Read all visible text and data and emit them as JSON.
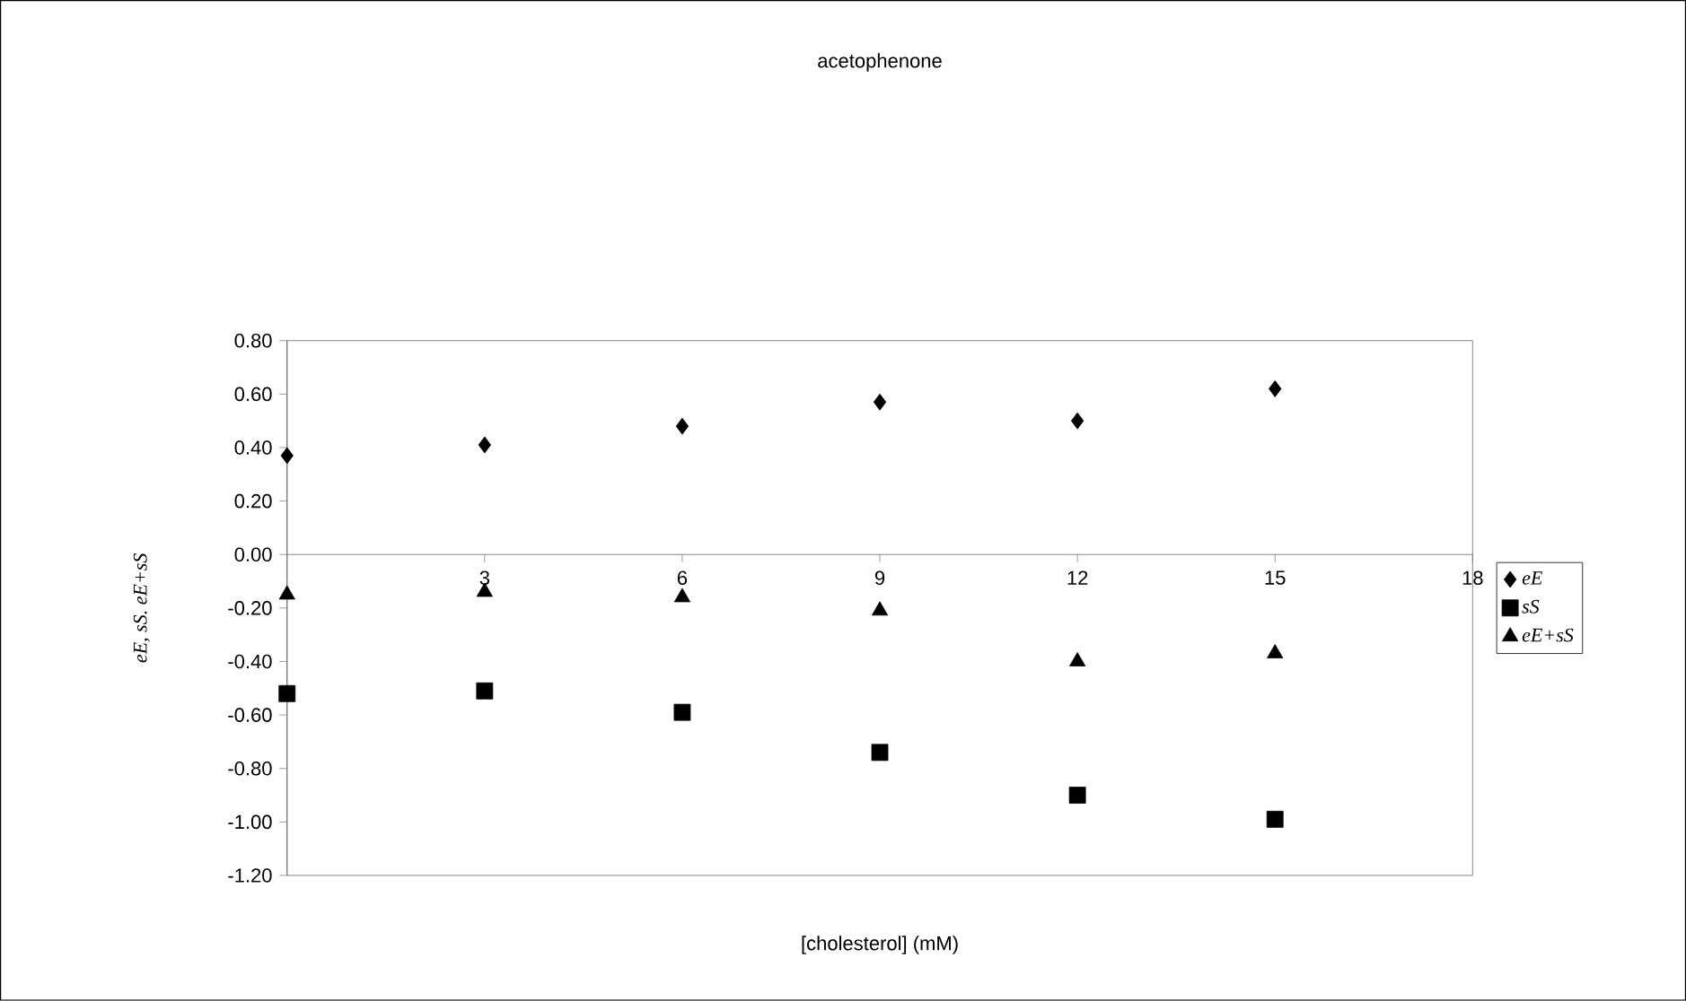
{
  "chart_data": {
    "type": "scatter",
    "title": "acetophenone",
    "xlabel": "[cholesterol] (mM)",
    "ylabel": "eE, sS. eE+sS",
    "x": [
      0,
      3,
      6,
      9,
      12,
      15
    ],
    "series": [
      {
        "name": "eE",
        "color": "#000000",
        "marker": "diamond",
        "values": [
          0.37,
          0.41,
          0.48,
          0.57,
          0.5,
          0.62
        ]
      },
      {
        "name": "sS",
        "color": "#000000",
        "marker": "square",
        "values": [
          -0.52,
          -0.51,
          -0.59,
          -0.74,
          -0.9,
          -0.99
        ]
      },
      {
        "name": "eE+sS",
        "color": "#000000",
        "marker": "triangle",
        "values": [
          -0.15,
          -0.14,
          -0.16,
          -0.21,
          -0.4,
          -0.37
        ]
      }
    ],
    "xlim": [
      0,
      18
    ],
    "ylim": [
      -1.2,
      0.8
    ],
    "xticks": [
      3,
      6,
      9,
      12,
      15,
      18
    ],
    "yticks": [
      {
        "value": -1.2,
        "label": "-1.20"
      },
      {
        "value": -1.0,
        "label": "-1.00"
      },
      {
        "value": -0.8,
        "label": "-0.80"
      },
      {
        "value": -0.6,
        "label": "-0.60"
      },
      {
        "value": -0.4,
        "label": "-0.40"
      },
      {
        "value": -0.2,
        "label": "-0.20"
      },
      {
        "value": 0,
        "label": "0.00"
      },
      {
        "value": 0.2,
        "label": "0.20"
      },
      {
        "value": 0.4,
        "label": "0.40"
      },
      {
        "value": 0.6,
        "label": "0.60"
      },
      {
        "value": 0.8,
        "label": "0.80"
      }
    ],
    "legend": "right",
    "grid": false
  }
}
